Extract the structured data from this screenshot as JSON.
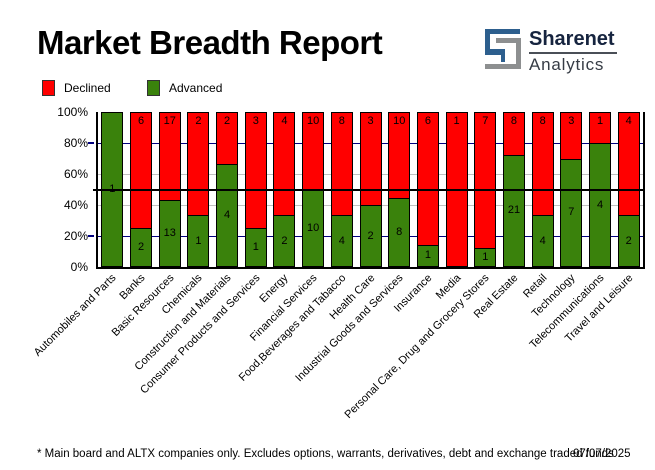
{
  "title": "Market Breadth Report",
  "logo": {
    "name": "Sharenet",
    "subname": "Analytics",
    "blue": "#2d5f8e",
    "gray": "#8d8f90"
  },
  "legend": [
    {
      "label": "Declined",
      "color": "#ff0000"
    },
    {
      "label": "Advanced",
      "color": "#3a820c"
    }
  ],
  "footnote": "* Main board and ALTX companies only. Excludes options, warrants, derivatives, debt and exchange traded funds",
  "date": "07/07/2025",
  "chart_data": {
    "type": "bar",
    "stacked": true,
    "stack_mode": "percent",
    "title": "Market Breadth Report",
    "xlabel": "",
    "ylabel": "",
    "ylim": [
      0,
      100
    ],
    "yticks": [
      "100%",
      "80%",
      "60%",
      "40%",
      "20%",
      "0%"
    ],
    "grid": {
      "navy": [
        80,
        20
      ],
      "silver": [
        60,
        40
      ],
      "black_overlay": [
        50
      ]
    },
    "legend_position": "top-left",
    "categories": [
      "Automobiles and Parts",
      "Banks",
      "Basic Resources",
      "Chemicals",
      "Construction and Materials",
      "Consumer Products and Services",
      "Energy",
      "Financial Services",
      "Food,Beverages and Tabacco",
      "Health Care",
      "Industrial Goods and Services",
      "Insurance",
      "Media",
      "Personal Care, Drug and Grocery Stores",
      "Real Estate",
      "Retail",
      "Technology",
      "Telecommunications",
      "Travel and Leisure"
    ],
    "series": [
      {
        "name": "Declined",
        "color": "#ff0000",
        "values": [
          0,
          6,
          17,
          2,
          2,
          3,
          4,
          10,
          8,
          3,
          10,
          6,
          1,
          7,
          8,
          8,
          3,
          1,
          4
        ]
      },
      {
        "name": "Advanced",
        "color": "#3a820c",
        "values": [
          1,
          2,
          13,
          1,
          4,
          1,
          2,
          10,
          4,
          2,
          8,
          1,
          0,
          1,
          21,
          4,
          7,
          4,
          2
        ]
      }
    ]
  }
}
